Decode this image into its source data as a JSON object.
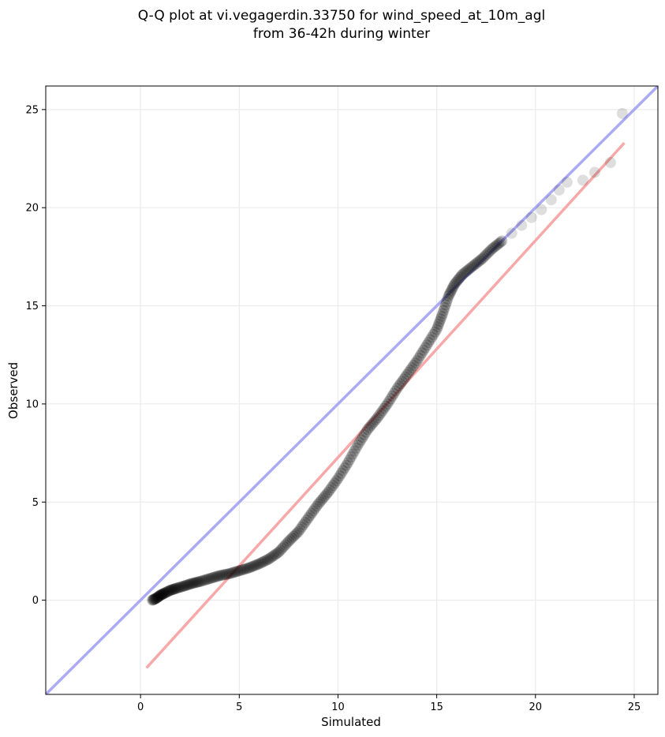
{
  "chart_data": {
    "type": "scatter",
    "title": "Q-Q plot at vi.vegagerdin.33750 for wind_speed_at_10m_agl",
    "subtitle": "from 36-42h during winter",
    "xlabel": "Simulated",
    "ylabel": "Observed",
    "xlim": [
      -4.8,
      26.2
    ],
    "ylim": [
      -4.8,
      26.2
    ],
    "xticks": [
      0,
      5,
      10,
      15,
      20,
      25
    ],
    "yticks": [
      0,
      5,
      10,
      15,
      20,
      25
    ],
    "grid": true,
    "colors": {
      "points": "#000000",
      "identity_line": "#aaaaf5",
      "fit_line": "#f7a8a8",
      "grid": "#ebebeb"
    },
    "reference_lines": [
      {
        "kind": "identity",
        "x": [
          -4.8,
          26.2
        ],
        "y": [
          -4.8,
          26.2
        ],
        "color": "#aaaaf5"
      },
      {
        "kind": "fit",
        "x": [
          0.3,
          24.5
        ],
        "y": [
          -3.45,
          23.3
        ],
        "color": "#f7a8a8"
      }
    ],
    "quantiles": {
      "x": [
        0.6,
        0.8,
        1.0,
        1.2,
        1.5,
        1.8,
        2.2,
        2.6,
        3.0,
        3.5,
        4.0,
        4.5,
        5.0,
        5.5,
        6.0,
        6.5,
        7.0,
        7.5,
        8.0,
        8.5,
        9.0,
        9.5,
        10.0,
        10.5,
        11.0,
        11.5,
        12.0,
        12.5,
        13.0,
        13.5,
        14.0,
        14.5,
        15.0,
        15.3,
        15.6,
        15.9,
        16.3,
        16.8,
        17.3,
        17.8,
        18.3,
        18.8,
        19.3,
        19.8,
        20.3,
        20.8,
        21.2,
        21.6,
        22.4,
        23.0,
        23.8,
        24.4
      ],
      "y": [
        0.0,
        0.1,
        0.25,
        0.35,
        0.5,
        0.6,
        0.72,
        0.85,
        0.95,
        1.1,
        1.25,
        1.35,
        1.5,
        1.65,
        1.85,
        2.1,
        2.45,
        3.0,
        3.5,
        4.2,
        4.9,
        5.5,
        6.2,
        7.0,
        7.9,
        8.7,
        9.3,
        10.0,
        10.8,
        11.5,
        12.2,
        13.0,
        13.8,
        14.6,
        15.5,
        16.1,
        16.6,
        17.0,
        17.4,
        17.9,
        18.3,
        18.7,
        19.1,
        19.5,
        19.9,
        20.4,
        20.9,
        21.3,
        21.4,
        21.8,
        22.3,
        24.8
      ]
    }
  }
}
